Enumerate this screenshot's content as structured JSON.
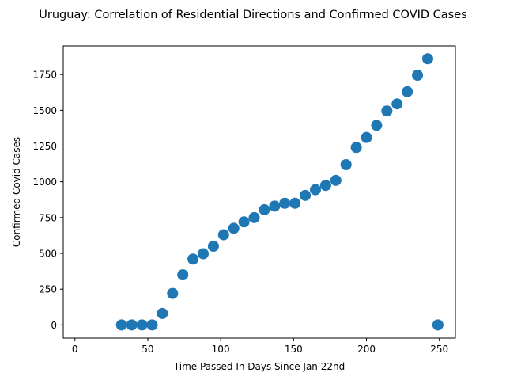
{
  "chart_data": {
    "type": "scatter",
    "title": "Uruguay: Correlation of Residential Directions and Confirmed COVID Cases",
    "xlabel": "Time Passed In Days Since Jan 22nd",
    "ylabel": "Confirmed Covid Cases",
    "xlim": [
      -8,
      261
    ],
    "ylim": [
      -92,
      1950
    ],
    "xticks": [
      0,
      50,
      100,
      150,
      200,
      250
    ],
    "yticks": [
      0,
      250,
      500,
      750,
      1000,
      1250,
      1500,
      1750
    ],
    "grid": false,
    "point_color": "#1f77b4",
    "x": [
      32,
      39,
      46,
      53,
      60,
      67,
      74,
      81,
      88,
      95,
      102,
      109,
      116,
      123,
      130,
      137,
      144,
      151,
      158,
      165,
      172,
      179,
      186,
      193,
      200,
      207,
      214,
      221,
      228,
      235,
      242,
      249
    ],
    "y": [
      0,
      0,
      0,
      0,
      80,
      220,
      350,
      460,
      497,
      550,
      630,
      675,
      720,
      750,
      805,
      830,
      850,
      850,
      905,
      945,
      975,
      1010,
      1120,
      1240,
      1310,
      1395,
      1495,
      1545,
      1630,
      1745,
      1860,
      0
    ]
  }
}
